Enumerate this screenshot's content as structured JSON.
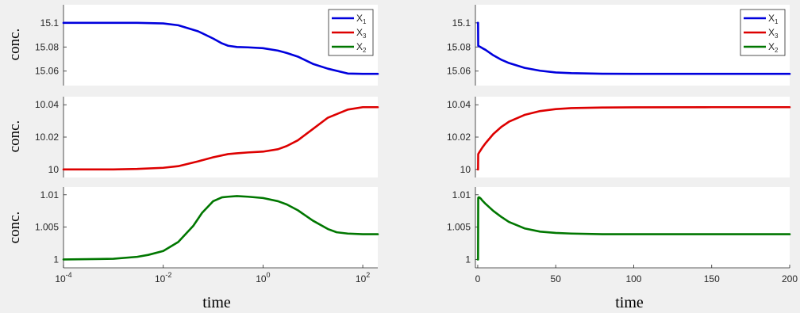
{
  "figure": {
    "ylabel": "conc.",
    "xlabel": "time",
    "left_xticks": [
      {
        "value": 0.0001,
        "base": "10",
        "exp": "-4"
      },
      {
        "value": 0.01,
        "base": "10",
        "exp": "-2"
      },
      {
        "value": 1,
        "base": "10",
        "exp": "0"
      },
      {
        "value": 100,
        "base": "10",
        "exp": "2"
      }
    ],
    "right_xticks": [
      "0",
      "50",
      "100",
      "150",
      "200"
    ],
    "legend": [
      {
        "base": "X",
        "sub": "1",
        "color": "#0000dd"
      },
      {
        "base": "X",
        "sub": "3",
        "color": "#dd0000"
      },
      {
        "base": "X",
        "sub": "2",
        "color": "#007700"
      }
    ]
  },
  "chart_data": [
    {
      "type": "line",
      "position": "top-left",
      "xscale": "log",
      "xlim": [
        0.0001,
        200
      ],
      "ylim": [
        15.048,
        15.115
      ],
      "yticks": [
        "15.06",
        "15.08",
        "15.1"
      ],
      "legend": "top-right",
      "series": [
        {
          "name": "X1",
          "color": "#0000dd",
          "x": [
            0.0001,
            0.001,
            0.003,
            0.01,
            0.02,
            0.05,
            0.1,
            0.15,
            0.2,
            0.3,
            0.5,
            1,
            2,
            3,
            5,
            10,
            20,
            50,
            100,
            200
          ],
          "y": [
            15.1,
            15.1,
            15.1,
            15.0995,
            15.098,
            15.093,
            15.087,
            15.083,
            15.081,
            15.08,
            15.0797,
            15.079,
            15.077,
            15.075,
            15.072,
            15.066,
            15.062,
            15.058,
            15.0577,
            15.0577
          ]
        }
      ]
    },
    {
      "type": "line",
      "position": "middle-left",
      "xscale": "log",
      "xlim": [
        0.0001,
        200
      ],
      "ylim": [
        9.995,
        10.045
      ],
      "yticks": [
        "10",
        "10.02",
        "10.04"
      ],
      "series": [
        {
          "name": "X3",
          "color": "#dd0000",
          "x": [
            0.0001,
            0.001,
            0.003,
            0.01,
            0.02,
            0.05,
            0.1,
            0.2,
            0.3,
            0.5,
            1,
            2,
            3,
            5,
            10,
            20,
            50,
            100,
            200
          ],
          "y": [
            10.0,
            10.0,
            10.0003,
            10.001,
            10.002,
            10.005,
            10.0075,
            10.0095,
            10.01,
            10.0105,
            10.011,
            10.0125,
            10.0145,
            10.018,
            10.025,
            10.032,
            10.037,
            10.0385,
            10.0385
          ]
        }
      ]
    },
    {
      "type": "line",
      "position": "bottom-left",
      "xscale": "log",
      "xlim": [
        0.0001,
        200
      ],
      "ylim": [
        0.9987,
        1.0112
      ],
      "yticks": [
        "1",
        "1.005",
        "1.01"
      ],
      "series": [
        {
          "name": "X2",
          "color": "#007700",
          "x": [
            0.0001,
            0.001,
            0.003,
            0.005,
            0.01,
            0.02,
            0.04,
            0.06,
            0.1,
            0.15,
            0.2,
            0.3,
            0.5,
            1,
            2,
            3,
            5,
            10,
            20,
            30,
            50,
            100,
            200
          ],
          "y": [
            1.0,
            1.0001,
            1.0004,
            1.0007,
            1.0013,
            1.0027,
            1.0052,
            1.0072,
            1.009,
            1.0096,
            1.0097,
            1.0098,
            1.0097,
            1.0095,
            1.009,
            1.0085,
            1.0076,
            1.006,
            1.0047,
            1.0042,
            1.004,
            1.0039,
            1.0039
          ]
        }
      ]
    },
    {
      "type": "line",
      "position": "top-right",
      "xscale": "linear",
      "xlim": [
        -1.5,
        200
      ],
      "ylim": [
        15.048,
        15.115
      ],
      "yticks": [
        "15.06",
        "15.08",
        "15.1"
      ],
      "legend": "top-right",
      "series": [
        {
          "name": "X1",
          "color": "#0000dd",
          "x": [
            0,
            0.2,
            0.3,
            0.5,
            1,
            3,
            5,
            10,
            15,
            20,
            30,
            40,
            50,
            60,
            80,
            100,
            150,
            200
          ],
          "y": [
            15.1,
            15.1,
            15.081,
            15.0808,
            15.0805,
            15.079,
            15.0776,
            15.0731,
            15.0695,
            15.0667,
            15.0627,
            15.0603,
            15.0589,
            15.0583,
            15.0578,
            15.0577,
            15.0577,
            15.0577
          ]
        }
      ]
    },
    {
      "type": "line",
      "position": "middle-right",
      "xscale": "linear",
      "xlim": [
        -1.5,
        200
      ],
      "ylim": [
        9.995,
        10.045
      ],
      "yticks": [
        "10",
        "10.02",
        "10.04"
      ],
      "series": [
        {
          "name": "X3",
          "color": "#dd0000",
          "x": [
            0,
            0.2,
            0.3,
            0.5,
            1,
            3,
            5,
            10,
            15,
            20,
            30,
            40,
            50,
            60,
            80,
            100,
            150,
            200
          ],
          "y": [
            10.0,
            10.0,
            10.0095,
            10.0098,
            10.0106,
            10.0136,
            10.0162,
            10.0219,
            10.0262,
            10.0295,
            10.0337,
            10.0361,
            10.0373,
            10.0379,
            10.0383,
            10.0384,
            10.0385,
            10.0385
          ]
        }
      ]
    },
    {
      "type": "line",
      "position": "bottom-right",
      "xscale": "linear",
      "xlim": [
        -1.5,
        200
      ],
      "ylim": [
        0.9987,
        1.0112
      ],
      "yticks": [
        "1",
        "1.005",
        "1.01"
      ],
      "series": [
        {
          "name": "X2",
          "color": "#007700",
          "x": [
            0,
            0.2,
            0.3,
            0.5,
            1,
            2,
            3,
            5,
            10,
            15,
            20,
            30,
            40,
            50,
            60,
            80,
            100,
            150,
            200
          ],
          "y": [
            1.0,
            1.0,
            1.0095,
            1.0096,
            1.0096,
            1.0094,
            1.0091,
            1.0086,
            1.0075,
            1.0066,
            1.0058,
            1.0048,
            1.0043,
            1.0041,
            1.004,
            1.0039,
            1.0039,
            1.0039,
            1.0039
          ]
        }
      ]
    }
  ]
}
